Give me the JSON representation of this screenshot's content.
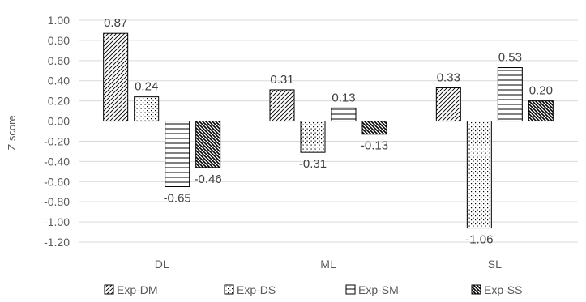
{
  "chart_data": {
    "type": "bar",
    "title": "",
    "xlabel": "",
    "ylabel": "Z score",
    "ylim": [
      -1.2,
      1.0
    ],
    "ytick_step": 0.2,
    "grid": true,
    "legend_position": "bottom",
    "categories": [
      "DL",
      "ML",
      "SL"
    ],
    "series": [
      {
        "name": "Exp-DM",
        "pattern": "diag-fine",
        "values": [
          0.87,
          0.31,
          0.33
        ],
        "labels": [
          "0.87",
          "0.31",
          "0.33"
        ]
      },
      {
        "name": "Exp-DS",
        "pattern": "dots",
        "values": [
          0.24,
          -0.31,
          -1.06
        ],
        "labels": [
          "0.24",
          "-0.31",
          "-1.06"
        ]
      },
      {
        "name": "Exp-SM",
        "pattern": "horizontal",
        "values": [
          -0.65,
          0.13,
          0.53
        ],
        "labels": [
          "-0.65",
          "0.13",
          "0.53"
        ]
      },
      {
        "name": "Exp-SS",
        "pattern": "diag-dense",
        "values": [
          -0.46,
          -0.13,
          0.2
        ],
        "labels": [
          "-0.46",
          "-0.13",
          "0.20"
        ]
      }
    ],
    "colors": {
      "grid": "#d9d9d9",
      "bar_stroke": "#000000",
      "text": "#595959"
    }
  }
}
